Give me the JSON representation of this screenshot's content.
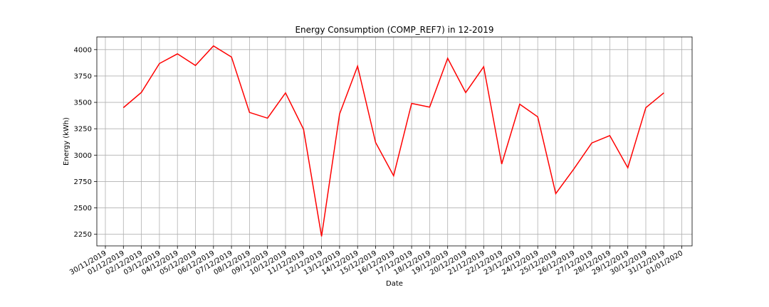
{
  "chart_data": {
    "type": "line",
    "title": "Energy Consumption (COMP_REF7) in 12-2019",
    "xlabel": "Date",
    "ylabel": "Energy (kWh)",
    "ylim": [
      2140,
      4120
    ],
    "xlim": [
      "2019-11-29.5",
      "2020-01-01.5"
    ],
    "grid": true,
    "x_ticks": [
      "30/11/2019",
      "01/12/2019",
      "02/12/2019",
      "03/12/2019",
      "04/12/2019",
      "05/12/2019",
      "06/12/2019",
      "07/12/2019",
      "08/12/2019",
      "09/12/2019",
      "10/12/2019",
      "11/12/2019",
      "12/12/2019",
      "13/12/2019",
      "14/12/2019",
      "15/12/2019",
      "16/12/2019",
      "17/12/2019",
      "18/12/2019",
      "19/12/2019",
      "20/12/2019",
      "21/12/2019",
      "22/12/2019",
      "23/12/2019",
      "24/12/2019",
      "25/12/2019",
      "26/12/2019",
      "27/12/2019",
      "28/12/2019",
      "29/12/2019",
      "30/12/2019",
      "31/12/2019",
      "01/01/2020"
    ],
    "y_ticks": [
      2250,
      2500,
      2750,
      3000,
      3250,
      3500,
      3750,
      4000
    ],
    "series": [
      {
        "color": "#ff0000",
        "x": [
          "01/12/2019",
          "02/12/2019",
          "03/12/2019",
          "04/12/2019",
          "05/12/2019",
          "06/12/2019",
          "07/12/2019",
          "08/12/2019",
          "09/12/2019",
          "10/12/2019",
          "11/12/2019",
          "12/12/2019",
          "13/12/2019",
          "14/12/2019",
          "15/12/2019",
          "16/12/2019",
          "17/12/2019",
          "18/12/2019",
          "19/12/2019",
          "20/12/2019",
          "21/12/2019",
          "22/12/2019",
          "23/12/2019",
          "24/12/2019",
          "25/12/2019",
          "26/12/2019",
          "27/12/2019",
          "28/12/2019",
          "29/12/2019",
          "30/12/2019",
          "31/12/2019"
        ],
        "values": [
          3450,
          3595,
          3868,
          3960,
          3850,
          4035,
          3930,
          3405,
          3350,
          3590,
          3245,
          2230,
          3390,
          3843,
          3120,
          2805,
          3490,
          3455,
          3918,
          3593,
          3838,
          2915,
          3483,
          3363,
          2635,
          2868,
          3115,
          3185,
          2880,
          3450,
          3590
        ]
      }
    ]
  }
}
